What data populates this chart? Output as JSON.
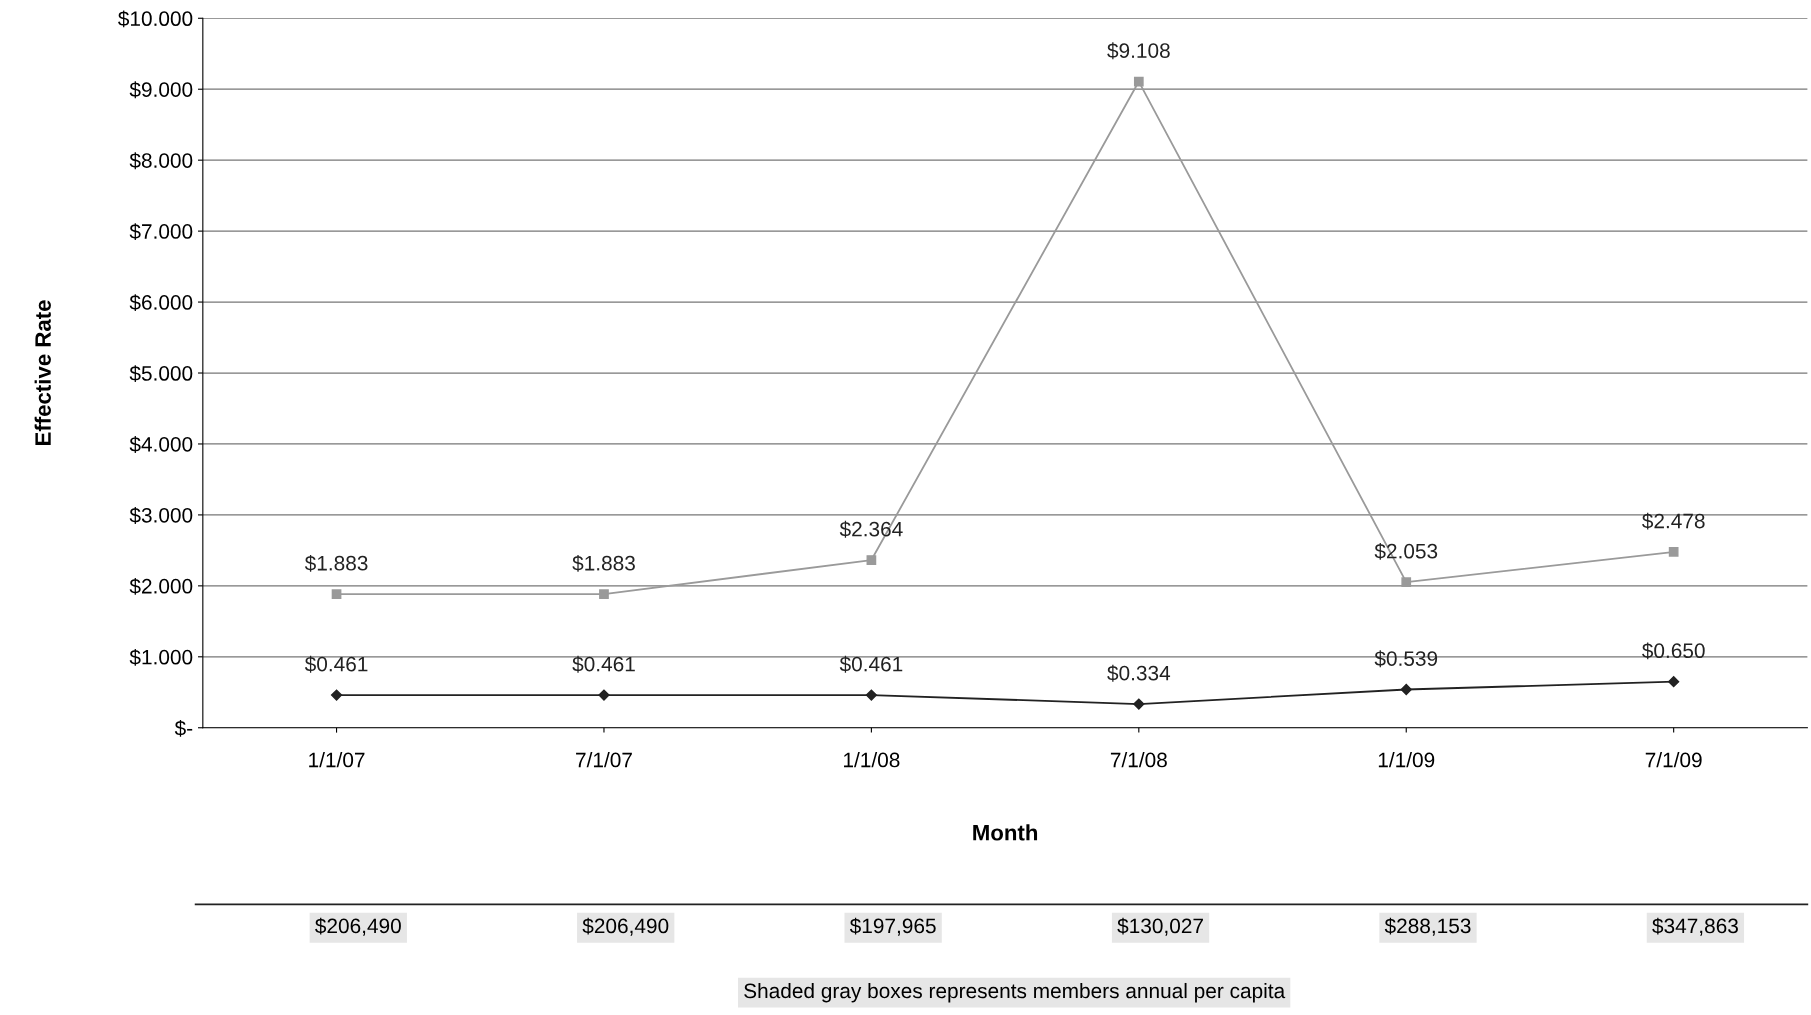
{
  "chart_data": {
    "type": "line",
    "xlabel": "Month",
    "ylabel": "Effective Rate",
    "categories": [
      "1/1/07",
      "7/1/07",
      "1/1/08",
      "7/1/08",
      "1/1/09",
      "7/1/09"
    ],
    "series": [
      {
        "color": "#9a9a9a",
        "marker": "square",
        "values": [
          1.883,
          1.883,
          2.364,
          9.108,
          2.053,
          2.478
        ],
        "value_labels": [
          "$1.883",
          "$1.883",
          "$2.364",
          "$9.108",
          "$2.053",
          "$2.478"
        ]
      },
      {
        "color": "#222222",
        "marker": "diamond",
        "values": [
          0.461,
          0.461,
          0.461,
          0.334,
          0.539,
          0.65
        ],
        "value_labels": [
          "$0.461",
          "$0.461",
          "$0.461",
          "$0.334",
          "$0.539",
          "$0.650"
        ]
      }
    ],
    "ylim": [
      0,
      10
    ],
    "yticks": [
      {
        "value": 0,
        "label": "$-"
      },
      {
        "value": 1,
        "label": "$1.000"
      },
      {
        "value": 2,
        "label": "$2.000"
      },
      {
        "value": 3,
        "label": "$3.000"
      },
      {
        "value": 4,
        "label": "$4.000"
      },
      {
        "value": 5,
        "label": "$5.000"
      },
      {
        "value": 6,
        "label": "$6.000"
      },
      {
        "value": 7,
        "label": "$7.000"
      },
      {
        "value": 8,
        "label": "$8.000"
      },
      {
        "value": 9,
        "label": "$9.000"
      },
      {
        "value": 10,
        "label": "$10.000"
      }
    ],
    "grid": "y",
    "legend": false,
    "line_style": "solid",
    "annotations": [
      "$206,490",
      "$206,490",
      "$197,965",
      "$130,027",
      "$288,153",
      "$347,863",
      "Shaded gray boxes represents members annual per capita"
    ]
  }
}
